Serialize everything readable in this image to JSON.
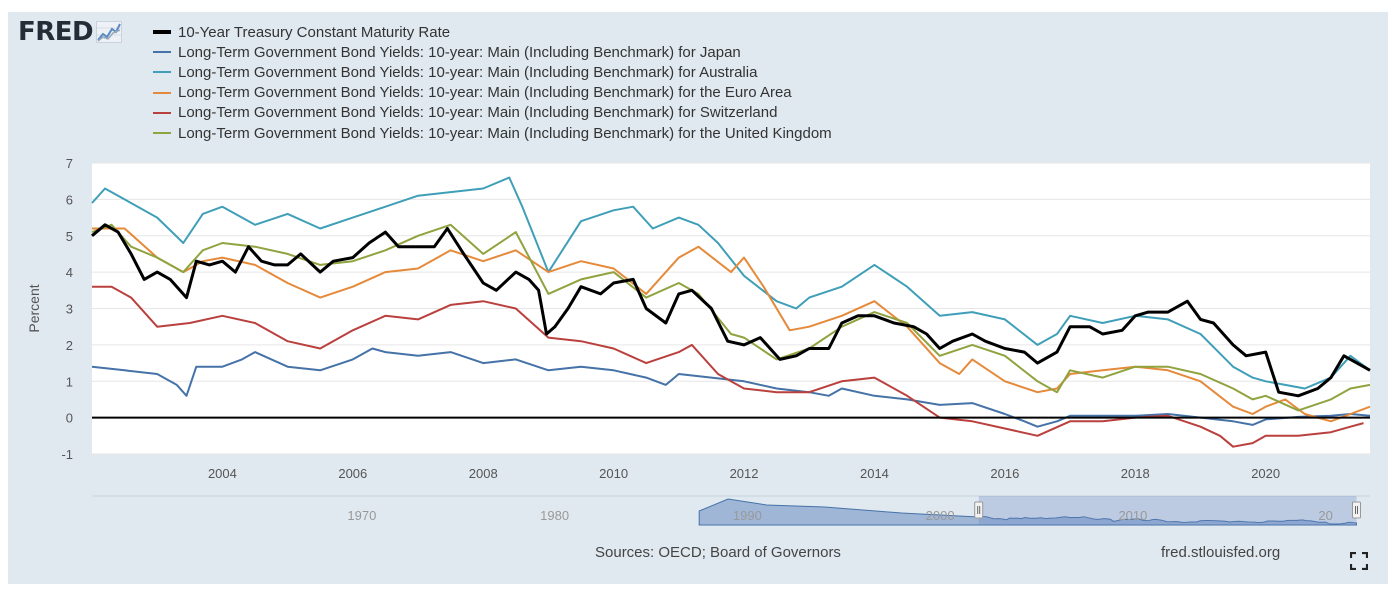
{
  "header": {
    "logo_text": "FRED",
    "logo_graph_icon": "line-graph-icon"
  },
  "footer": {
    "sources": "Sources: OECD; Board of Governors",
    "site": "fred.stlouisfed.org",
    "fullscreen_icon": "fullscreen-icon"
  },
  "colors": {
    "frame_bg": "#e1e9f0",
    "plot_bg": "#ffffff",
    "grid": "#e6e6e6",
    "navigator_fill": "#9fb6d6",
    "navigator_selection": "rgba(102,133,194,0.3)",
    "navigator_line": "#4572a7"
  },
  "navigator": {
    "tick_labels": [
      "1970",
      "1980",
      "1990",
      "2000",
      "2010",
      "20"
    ],
    "tick_years": [
      1970,
      1980,
      1990,
      2000,
      2010,
      2020
    ],
    "year_range": [
      1956,
      2022.3
    ],
    "selection": [
      2002,
      2021.6
    ],
    "shaded_start": 1987.5
  },
  "chart_data": {
    "type": "line",
    "title": "",
    "xlabel": "",
    "ylabel": "Percent",
    "xlim": [
      2002.0,
      2021.6
    ],
    "ylim": [
      -1,
      7
    ],
    "yticks": [
      -1,
      0,
      1,
      2,
      3,
      4,
      5,
      6,
      7
    ],
    "xticks": [
      2004,
      2006,
      2008,
      2010,
      2012,
      2014,
      2016,
      2018,
      2020
    ],
    "xtick_labels": [
      "2004",
      "2006",
      "2008",
      "2010",
      "2012",
      "2014",
      "2016",
      "2018",
      "2020"
    ],
    "grid": true,
    "legend_position": "top-left",
    "zero_line": true,
    "series": [
      {
        "name": "10-Year Treasury Constant Maturity Rate",
        "color": "#000000",
        "width": 3,
        "x": [
          2002.0,
          2002.2,
          2002.4,
          2002.6,
          2002.8,
          2003.0,
          2003.2,
          2003.45,
          2003.6,
          2003.8,
          2004.0,
          2004.2,
          2004.4,
          2004.6,
          2004.8,
          2005.0,
          2005.2,
          2005.5,
          2005.7,
          2006.0,
          2006.25,
          2006.5,
          2006.7,
          2007.0,
          2007.25,
          2007.45,
          2007.7,
          2008.0,
          2008.2,
          2008.5,
          2008.7,
          2008.85,
          2008.97,
          2009.1,
          2009.3,
          2009.5,
          2009.8,
          2010.0,
          2010.3,
          2010.5,
          2010.8,
          2011.0,
          2011.2,
          2011.5,
          2011.75,
          2012.0,
          2012.25,
          2012.55,
          2012.8,
          2013.0,
          2013.3,
          2013.5,
          2013.75,
          2014.0,
          2014.3,
          2014.6,
          2014.8,
          2015.0,
          2015.2,
          2015.5,
          2015.7,
          2016.0,
          2016.3,
          2016.5,
          2016.8,
          2017.0,
          2017.3,
          2017.5,
          2017.8,
          2018.0,
          2018.2,
          2018.5,
          2018.8,
          2019.0,
          2019.2,
          2019.5,
          2019.7,
          2020.0,
          2020.2,
          2020.5,
          2020.8,
          2021.0,
          2021.2,
          2021.4,
          2021.6
        ],
        "y": [
          5.0,
          5.3,
          5.1,
          4.5,
          3.8,
          4.0,
          3.8,
          3.3,
          4.3,
          4.2,
          4.3,
          4.0,
          4.7,
          4.3,
          4.2,
          4.2,
          4.5,
          4.0,
          4.3,
          4.4,
          4.8,
          5.1,
          4.7,
          4.7,
          4.7,
          5.2,
          4.5,
          3.7,
          3.5,
          4.0,
          3.8,
          3.5,
          2.3,
          2.5,
          3.0,
          3.6,
          3.4,
          3.7,
          3.8,
          3.0,
          2.6,
          3.4,
          3.5,
          3.0,
          2.1,
          2.0,
          2.2,
          1.6,
          1.7,
          1.9,
          1.9,
          2.6,
          2.8,
          2.8,
          2.6,
          2.5,
          2.3,
          1.9,
          2.1,
          2.3,
          2.1,
          1.9,
          1.8,
          1.5,
          1.8,
          2.5,
          2.5,
          2.3,
          2.4,
          2.8,
          2.9,
          2.9,
          3.2,
          2.7,
          2.6,
          2.0,
          1.7,
          1.8,
          0.7,
          0.6,
          0.8,
          1.1,
          1.7,
          1.5,
          1.3
        ]
      },
      {
        "name": "Long-Term Government Bond Yields: 10-year: Main (Including Benchmark) for Japan",
        "color": "#4572a7",
        "width": 2,
        "x": [
          2002.0,
          2002.5,
          2003.0,
          2003.3,
          2003.45,
          2003.6,
          2004.0,
          2004.3,
          2004.5,
          2005.0,
          2005.5,
          2006.0,
          2006.3,
          2006.5,
          2007.0,
          2007.5,
          2008.0,
          2008.5,
          2009.0,
          2009.5,
          2010.0,
          2010.5,
          2010.8,
          2011.0,
          2011.5,
          2012.0,
          2012.5,
          2013.0,
          2013.3,
          2013.5,
          2014.0,
          2014.5,
          2015.0,
          2015.5,
          2016.0,
          2016.3,
          2016.5,
          2016.8,
          2017.0,
          2017.5,
          2018.0,
          2018.5,
          2019.0,
          2019.5,
          2019.8,
          2020.0,
          2020.5,
          2021.0,
          2021.3,
          2021.6
        ],
        "y": [
          1.4,
          1.3,
          1.2,
          0.9,
          0.6,
          1.4,
          1.4,
          1.6,
          1.8,
          1.4,
          1.3,
          1.6,
          1.9,
          1.8,
          1.7,
          1.8,
          1.5,
          1.6,
          1.3,
          1.4,
          1.3,
          1.1,
          0.9,
          1.2,
          1.1,
          1.0,
          0.8,
          0.7,
          0.6,
          0.8,
          0.6,
          0.5,
          0.35,
          0.4,
          0.1,
          -0.1,
          -0.25,
          -0.1,
          0.05,
          0.05,
          0.05,
          0.1,
          0.0,
          -0.1,
          -0.2,
          -0.05,
          0.02,
          0.05,
          0.1,
          0.05
        ]
      },
      {
        "name": "Long-Term Government Bond Yields: 10-year: Main (Including Benchmark) for Australia",
        "color": "#3f9fb8",
        "width": 2,
        "x": [
          2002.0,
          2002.2,
          2002.5,
          2003.0,
          2003.4,
          2003.7,
          2004.0,
          2004.5,
          2005.0,
          2005.5,
          2006.0,
          2006.5,
          2007.0,
          2007.5,
          2008.0,
          2008.4,
          2008.6,
          2009.0,
          2009.5,
          2010.0,
          2010.3,
          2010.6,
          2011.0,
          2011.3,
          2011.6,
          2012.0,
          2012.5,
          2012.8,
          2013.0,
          2013.5,
          2014.0,
          2014.5,
          2015.0,
          2015.5,
          2016.0,
          2016.5,
          2016.8,
          2017.0,
          2017.5,
          2018.0,
          2018.5,
          2019.0,
          2019.5,
          2019.8,
          2020.0,
          2020.3,
          2020.6,
          2021.0,
          2021.3,
          2021.6
        ],
        "y": [
          5.9,
          6.3,
          6.0,
          5.5,
          4.8,
          5.6,
          5.8,
          5.3,
          5.6,
          5.2,
          5.5,
          5.8,
          6.1,
          6.2,
          6.3,
          6.6,
          5.8,
          4.0,
          5.4,
          5.7,
          5.8,
          5.2,
          5.5,
          5.3,
          4.8,
          3.9,
          3.2,
          3.0,
          3.3,
          3.6,
          4.2,
          3.6,
          2.8,
          2.9,
          2.7,
          2.0,
          2.3,
          2.8,
          2.6,
          2.8,
          2.7,
          2.3,
          1.4,
          1.1,
          1.0,
          0.9,
          0.8,
          1.1,
          1.7,
          1.3
        ]
      },
      {
        "name": "Long-Term Government Bond Yields: 10-year: Main (Including Benchmark) for the Euro Area",
        "color": "#e58a3a",
        "width": 2,
        "x": [
          2002.0,
          2002.5,
          2003.0,
          2003.4,
          2003.7,
          2004.0,
          2004.5,
          2005.0,
          2005.5,
          2006.0,
          2006.5,
          2007.0,
          2007.5,
          2008.0,
          2008.5,
          2009.0,
          2009.5,
          2010.0,
          2010.5,
          2011.0,
          2011.3,
          2011.8,
          2012.0,
          2012.3,
          2012.7,
          2013.0,
          2013.5,
          2014.0,
          2014.5,
          2015.0,
          2015.3,
          2015.5,
          2016.0,
          2016.5,
          2016.8,
          2017.0,
          2017.5,
          2018.0,
          2018.5,
          2019.0,
          2019.5,
          2019.8,
          2020.0,
          2020.3,
          2020.6,
          2021.0,
          2021.3,
          2021.6
        ],
        "y": [
          5.2,
          5.2,
          4.4,
          4.0,
          4.3,
          4.4,
          4.2,
          3.7,
          3.3,
          3.6,
          4.0,
          4.1,
          4.6,
          4.3,
          4.6,
          4.0,
          4.3,
          4.1,
          3.4,
          4.4,
          4.7,
          4.0,
          4.4,
          3.6,
          2.4,
          2.5,
          2.8,
          3.2,
          2.5,
          1.5,
          1.2,
          1.6,
          1.0,
          0.7,
          0.8,
          1.2,
          1.3,
          1.4,
          1.3,
          1.0,
          0.3,
          0.1,
          0.3,
          0.5,
          0.1,
          -0.1,
          0.1,
          0.3
        ]
      },
      {
        "name": "Long-Term Government Bond Yields: 10-year: Main (Including Benchmark) for Switzerland",
        "color": "#b9403d",
        "width": 2,
        "x": [
          2002.0,
          2002.3,
          2002.6,
          2003.0,
          2003.5,
          2004.0,
          2004.5,
          2005.0,
          2005.5,
          2006.0,
          2006.5,
          2007.0,
          2007.5,
          2008.0,
          2008.5,
          2009.0,
          2009.5,
          2010.0,
          2010.5,
          2011.0,
          2011.2,
          2011.6,
          2012.0,
          2012.5,
          2013.0,
          2013.5,
          2014.0,
          2014.5,
          2015.0,
          2015.5,
          2016.0,
          2016.5,
          2017.0,
          2017.5,
          2018.0,
          2018.5,
          2019.0,
          2019.3,
          2019.5,
          2019.8,
          2020.0,
          2020.5,
          2021.0,
          2021.3,
          2021.5
        ],
        "y": [
          3.6,
          3.6,
          3.3,
          2.5,
          2.6,
          2.8,
          2.6,
          2.1,
          1.9,
          2.4,
          2.8,
          2.7,
          3.1,
          3.2,
          3.0,
          2.2,
          2.1,
          1.9,
          1.5,
          1.8,
          2.0,
          1.2,
          0.8,
          0.7,
          0.7,
          1.0,
          1.1,
          0.6,
          0.0,
          -0.1,
          -0.3,
          -0.5,
          -0.1,
          -0.1,
          0.0,
          0.05,
          -0.25,
          -0.5,
          -0.8,
          -0.7,
          -0.5,
          -0.5,
          -0.4,
          -0.25,
          -0.15
        ]
      },
      {
        "name": "Long-Term Government Bond Yields: 10-year: Main (Including Benchmark) for the United Kingdom",
        "color": "#8fa33f",
        "width": 2,
        "x": [
          2002.0,
          2002.3,
          2002.6,
          2003.0,
          2003.4,
          2003.7,
          2004.0,
          2004.5,
          2005.0,
          2005.5,
          2006.0,
          2006.5,
          2007.0,
          2007.5,
          2008.0,
          2008.5,
          2009.0,
          2009.5,
          2010.0,
          2010.5,
          2011.0,
          2011.3,
          2011.8,
          2012.0,
          2012.5,
          2013.0,
          2013.5,
          2014.0,
          2014.5,
          2015.0,
          2015.5,
          2016.0,
          2016.5,
          2016.8,
          2017.0,
          2017.5,
          2018.0,
          2018.5,
          2019.0,
          2019.5,
          2019.8,
          2020.0,
          2020.5,
          2021.0,
          2021.3,
          2021.6
        ],
        "y": [
          5.1,
          5.3,
          4.7,
          4.4,
          4.0,
          4.6,
          4.8,
          4.7,
          4.5,
          4.2,
          4.3,
          4.6,
          5.0,
          5.3,
          4.5,
          5.1,
          3.4,
          3.8,
          4.0,
          3.3,
          3.7,
          3.4,
          2.3,
          2.2,
          1.6,
          1.9,
          2.5,
          2.9,
          2.6,
          1.7,
          2.0,
          1.7,
          1.0,
          0.7,
          1.3,
          1.1,
          1.4,
          1.4,
          1.2,
          0.8,
          0.5,
          0.6,
          0.2,
          0.5,
          0.8,
          0.9
        ]
      }
    ]
  }
}
